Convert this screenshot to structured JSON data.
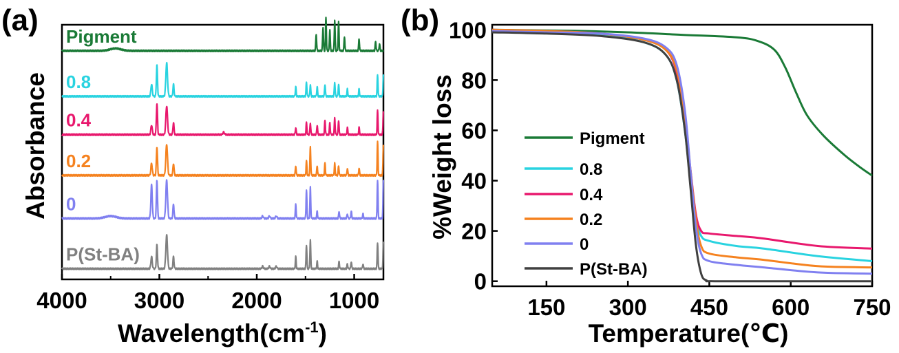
{
  "chart_data": [
    {
      "type": "line",
      "panel_label": "(a)",
      "xlabel": "Wavelength(cm",
      "xlabel_sup": "-1",
      "xlabel_end": ")",
      "ylabel": "Absorbance",
      "xlim": [
        4000,
        700
      ],
      "x_reversed": true,
      "x_ticks": [
        "4000",
        "3000",
        "2000",
        "1000"
      ],
      "y_ticks_shown": false,
      "legend": "inline-left",
      "series": [
        {
          "name": "Pigment",
          "color": "#1a7a36",
          "baseline": 0.94,
          "peaks": [
            [
              3450,
              0.01,
              80
            ],
            [
              1390,
              0.07,
              6
            ],
            [
              1320,
              0.1,
              6
            ],
            [
              1290,
              0.14,
              6
            ],
            [
              1250,
              0.09,
              6
            ],
            [
              1200,
              0.13,
              6
            ],
            [
              1160,
              0.12,
              6
            ],
            [
              1100,
              0.06,
              6
            ],
            [
              950,
              0.05,
              6
            ],
            [
              780,
              0.04,
              6
            ],
            [
              740,
              0.03,
              6
            ]
          ]
        },
        {
          "name": "0.8",
          "color": "#29d3e0",
          "baseline": 0.75,
          "peaks": [
            [
              3080,
              0.05,
              10
            ],
            [
              3025,
              0.13,
              8
            ],
            [
              2925,
              0.14,
              12
            ],
            [
              2855,
              0.05,
              8
            ],
            [
              1600,
              0.04,
              6
            ],
            [
              1490,
              0.06,
              6
            ],
            [
              1450,
              0.05,
              6
            ],
            [
              1380,
              0.04,
              6
            ],
            [
              1300,
              0.05,
              6
            ],
            [
              1200,
              0.06,
              6
            ],
            [
              1160,
              0.05,
              6
            ],
            [
              1070,
              0.03,
              6
            ],
            [
              950,
              0.03,
              6
            ],
            [
              760,
              0.09,
              6
            ],
            [
              700,
              0.09,
              6
            ]
          ]
        },
        {
          "name": "0.4",
          "color": "#e8186d",
          "baseline": 0.59,
          "peaks": [
            [
              3080,
              0.04,
              10
            ],
            [
              3025,
              0.13,
              8
            ],
            [
              2925,
              0.12,
              12
            ],
            [
              2855,
              0.05,
              8
            ],
            [
              2340,
              0.01,
              12
            ],
            [
              1600,
              0.03,
              6
            ],
            [
              1490,
              0.05,
              6
            ],
            [
              1450,
              0.05,
              6
            ],
            [
              1380,
              0.04,
              6
            ],
            [
              1300,
              0.06,
              6
            ],
            [
              1250,
              0.05,
              6
            ],
            [
              1200,
              0.07,
              6
            ],
            [
              1160,
              0.06,
              6
            ],
            [
              1070,
              0.03,
              6
            ],
            [
              950,
              0.03,
              6
            ],
            [
              760,
              0.1,
              6
            ],
            [
              700,
              0.1,
              6
            ]
          ]
        },
        {
          "name": "0.2",
          "color": "#f5821f",
          "baseline": 0.42,
          "peaks": [
            [
              3080,
              0.05,
              10
            ],
            [
              3025,
              0.12,
              8
            ],
            [
              2925,
              0.13,
              12
            ],
            [
              2855,
              0.05,
              8
            ],
            [
              1600,
              0.04,
              6
            ],
            [
              1490,
              0.06,
              6
            ],
            [
              1450,
              0.12,
              6
            ],
            [
              1380,
              0.04,
              6
            ],
            [
              1300,
              0.05,
              6
            ],
            [
              1200,
              0.05,
              6
            ],
            [
              1160,
              0.04,
              6
            ],
            [
              1070,
              0.03,
              6
            ],
            [
              950,
              0.03,
              6
            ],
            [
              760,
              0.14,
              6
            ],
            [
              700,
              0.13,
              6
            ]
          ]
        },
        {
          "name": "0",
          "color": "#8080f0",
          "baseline": 0.24,
          "peaks": [
            [
              3500,
              0.01,
              80
            ],
            [
              3080,
              0.14,
              10
            ],
            [
              3025,
              0.16,
              8
            ],
            [
              2925,
              0.16,
              12
            ],
            [
              2855,
              0.06,
              8
            ],
            [
              1940,
              0.01,
              10
            ],
            [
              1870,
              0.01,
              10
            ],
            [
              1800,
              0.01,
              10
            ],
            [
              1600,
              0.06,
              6
            ],
            [
              1490,
              0.12,
              6
            ],
            [
              1450,
              0.13,
              6
            ],
            [
              1380,
              0.03,
              6
            ],
            [
              1155,
              0.03,
              6
            ],
            [
              1070,
              0.02,
              6
            ],
            [
              1030,
              0.03,
              6
            ],
            [
              910,
              0.02,
              6
            ],
            [
              760,
              0.16,
              6
            ],
            [
              700,
              0.16,
              6
            ]
          ]
        },
        {
          "name": "P(St-BA)",
          "color": "#808080",
          "baseline": 0.03,
          "peaks": [
            [
              3080,
              0.05,
              10
            ],
            [
              3025,
              0.1,
              8
            ],
            [
              2925,
              0.14,
              12
            ],
            [
              2855,
              0.05,
              8
            ],
            [
              1940,
              0.01,
              10
            ],
            [
              1870,
              0.01,
              10
            ],
            [
              1800,
              0.01,
              10
            ],
            [
              1600,
              0.05,
              6
            ],
            [
              1490,
              0.1,
              6
            ],
            [
              1450,
              0.12,
              6
            ],
            [
              1380,
              0.03,
              6
            ],
            [
              1155,
              0.03,
              6
            ],
            [
              1070,
              0.02,
              6
            ],
            [
              1030,
              0.03,
              6
            ],
            [
              910,
              0.02,
              6
            ],
            [
              760,
              0.11,
              6
            ],
            [
              700,
              0.11,
              6
            ]
          ]
        }
      ]
    },
    {
      "type": "line",
      "panel_label": "(b)",
      "xlabel": "Temperature(℃)",
      "ylabel": "%Weight loss",
      "xlim": [
        50,
        750
      ],
      "ylim": [
        -2,
        102
      ],
      "x_ticks": [
        150,
        300,
        450,
        600,
        750
      ],
      "y_ticks": [
        0,
        20,
        40,
        60,
        80,
        100
      ],
      "legend": "center-left",
      "series": [
        {
          "name": "Pigment",
          "color": "#1a7a36",
          "points": [
            [
              50,
              100
            ],
            [
              200,
              99.6
            ],
            [
              300,
              99
            ],
            [
              400,
              98
            ],
            [
              500,
              97
            ],
            [
              540,
              95.5
            ],
            [
              570,
              92
            ],
            [
              590,
              85
            ],
            [
              610,
              75
            ],
            [
              630,
              66
            ],
            [
              660,
              58
            ],
            [
              700,
              50
            ],
            [
              730,
              45
            ],
            [
              750,
              42
            ]
          ]
        },
        {
          "name": "0.8",
          "color": "#29d3e0",
          "points": [
            [
              50,
              99.5
            ],
            [
              150,
              99
            ],
            [
              250,
              98
            ],
            [
              330,
              95
            ],
            [
              370,
              90
            ],
            [
              390,
              80
            ],
            [
              405,
              60
            ],
            [
              415,
              40
            ],
            [
              425,
              25
            ],
            [
              435,
              18
            ],
            [
              450,
              16
            ],
            [
              500,
              14
            ],
            [
              550,
              13
            ],
            [
              650,
              10
            ],
            [
              750,
              8
            ]
          ]
        },
        {
          "name": "0.4",
          "color": "#e8186d",
          "points": [
            [
              50,
              100
            ],
            [
              150,
              99.5
            ],
            [
              250,
              98.5
            ],
            [
              330,
              96
            ],
            [
              370,
              92
            ],
            [
              390,
              83
            ],
            [
              405,
              63
            ],
            [
              415,
              45
            ],
            [
              425,
              27
            ],
            [
              435,
              20
            ],
            [
              450,
              19
            ],
            [
              500,
              18
            ],
            [
              550,
              17
            ],
            [
              650,
              14
            ],
            [
              750,
              13
            ]
          ]
        },
        {
          "name": "0.2",
          "color": "#f5821f",
          "points": [
            [
              50,
              100
            ],
            [
              150,
              99.5
            ],
            [
              250,
              98.5
            ],
            [
              330,
              96
            ],
            [
              370,
              92
            ],
            [
              390,
              84
            ],
            [
              405,
              66
            ],
            [
              415,
              45
            ],
            [
              425,
              25
            ],
            [
              435,
              14
            ],
            [
              450,
              11
            ],
            [
              500,
              9.5
            ],
            [
              550,
              8.5
            ],
            [
              650,
              6
            ],
            [
              750,
              5.5
            ]
          ]
        },
        {
          "name": "0",
          "color": "#8080f0",
          "points": [
            [
              50,
              99.5
            ],
            [
              150,
              99
            ],
            [
              250,
              98.5
            ],
            [
              330,
              96.5
            ],
            [
              370,
              93
            ],
            [
              390,
              86
            ],
            [
              405,
              68
            ],
            [
              415,
              45
            ],
            [
              425,
              22
            ],
            [
              435,
              11
            ],
            [
              450,
              8
            ],
            [
              500,
              6.5
            ],
            [
              550,
              5.5
            ],
            [
              650,
              3.5
            ],
            [
              750,
              3
            ]
          ]
        },
        {
          "name": "P(St-BA)",
          "color": "#404040",
          "points": [
            [
              50,
              99
            ],
            [
              150,
              98.5
            ],
            [
              250,
              97.5
            ],
            [
              330,
              95
            ],
            [
              370,
              90
            ],
            [
              390,
              80
            ],
            [
              405,
              60
            ],
            [
              415,
              38
            ],
            [
              425,
              15
            ],
            [
              435,
              3
            ],
            [
              445,
              0.3
            ],
            [
              460,
              0
            ],
            [
              600,
              0
            ],
            [
              750,
              0
            ]
          ]
        }
      ]
    }
  ]
}
